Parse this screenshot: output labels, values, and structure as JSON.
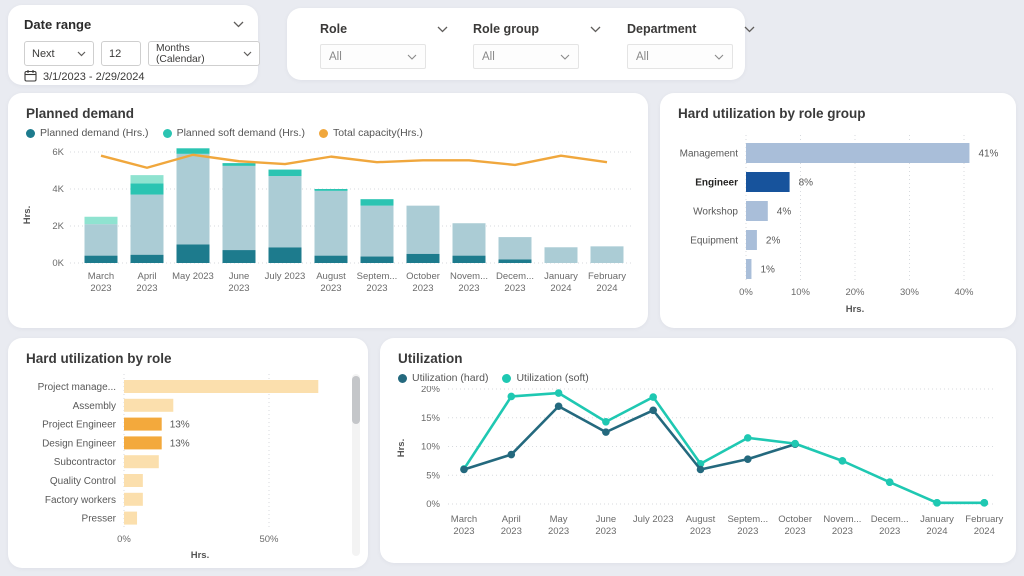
{
  "page": {
    "background": "#e9ebf1",
    "card_background": "#ffffff"
  },
  "icons": {
    "chevron_down": "chevron-down",
    "calendar": "calendar-outline"
  },
  "date_range": {
    "title": "Date range",
    "mode": "Next",
    "count": "12",
    "unit": "Months (Calendar)",
    "range_text": "3/1/2023 - 2/29/2024"
  },
  "filters": [
    {
      "label": "Role",
      "value": "All"
    },
    {
      "label": "Role group",
      "value": "All"
    },
    {
      "label": "Department",
      "value": "All"
    }
  ],
  "planned_demand": {
    "title": "Planned demand",
    "legend": [
      {
        "label": "Planned demand (Hrs.)",
        "color": "#1d7b8d"
      },
      {
        "label": "Planned soft demand (Hrs.)",
        "color": "#2bc4b2"
      },
      {
        "label": "Total capacity(Hrs.)",
        "color": "#f0a73d"
      }
    ],
    "chart_data": {
      "type": "bar",
      "stacked": true,
      "ylabel": "Hrs.",
      "ylim": [
        0,
        6400
      ],
      "grid": true,
      "yticks": [
        {
          "value": 0,
          "label": "0K"
        },
        {
          "value": 2000,
          "label": "2K"
        },
        {
          "value": 4000,
          "label": "4K"
        },
        {
          "value": 6000,
          "label": "6K"
        }
      ],
      "categories": [
        [
          "March",
          "2023"
        ],
        [
          "April",
          "2023"
        ],
        [
          "May 2023"
        ],
        [
          "June",
          "2023"
        ],
        [
          "July 2023"
        ],
        [
          "August",
          "2023"
        ],
        [
          "Septem...",
          "2023"
        ],
        [
          "October",
          "2023"
        ],
        [
          "Novem...",
          "2023"
        ],
        [
          "Decem...",
          "2023"
        ],
        [
          "January",
          "2024"
        ],
        [
          "February",
          "2024"
        ]
      ],
      "series": [
        {
          "name": "Planned demand (Hrs.)",
          "color": "#1d7b8d",
          "values": [
            400,
            450,
            1000,
            700,
            850,
            400,
            350,
            500,
            400,
            200,
            0,
            0
          ]
        },
        {
          "name": "Planned soft demand (Hrs.) muted",
          "color": "#abccd5",
          "values": [
            1700,
            3250,
            4900,
            4550,
            3850,
            3500,
            2750,
            2600,
            1750,
            1200,
            850,
            900
          ]
        },
        {
          "name": "Planned soft demand (Hrs.) bright",
          "color": "#2bc4b2",
          "values": [
            0,
            600,
            300,
            150,
            350,
            100,
            350,
            0,
            0,
            0,
            0,
            0
          ]
        },
        {
          "name": "Planned soft demand (Hrs.) light",
          "color": "#8fe3d0",
          "values": [
            400,
            450,
            0,
            0,
            0,
            0,
            0,
            0,
            0,
            0,
            0,
            0
          ]
        }
      ],
      "line": {
        "name": "Total capacity(Hrs.)",
        "color": "#f0a73d",
        "values": [
          5800,
          5150,
          5850,
          5500,
          5350,
          5750,
          5450,
          5550,
          5550,
          5300,
          5800,
          5450
        ]
      }
    }
  },
  "role_group": {
    "title": "Hard utilization by role group",
    "chart_data": {
      "type": "bar",
      "orientation": "horizontal",
      "xlabel": "Hrs.",
      "xlim": [
        0,
        44
      ],
      "grid": true,
      "xticks": [
        {
          "value": 0,
          "label": "0%"
        },
        {
          "value": 10,
          "label": "10%"
        },
        {
          "value": 20,
          "label": "20%"
        },
        {
          "value": 30,
          "label": "30%"
        },
        {
          "value": 40,
          "label": "40%"
        }
      ],
      "categories": [
        "Management",
        "Engineer",
        "Workshop",
        "Equipment",
        ""
      ],
      "values": [
        41,
        8,
        4,
        2,
        1
      ],
      "data_labels": [
        "41%",
        "8%",
        "4%",
        "2%",
        "1%"
      ],
      "bar_color": "#a9bed9",
      "highlight_color": "#17539c",
      "highlighted_index": 1
    }
  },
  "role": {
    "title": "Hard utilization by role",
    "chart_data": {
      "type": "bar",
      "orientation": "horizontal",
      "xlabel": "Hrs.",
      "xlim": [
        0,
        78
      ],
      "grid": true,
      "xticks": [
        {
          "value": 0,
          "label": "0%"
        },
        {
          "value": 50,
          "label": "50%"
        }
      ],
      "categories": [
        "Project manage...",
        "Assembly",
        "Project Engineer",
        "Design Engineer",
        "Subcontractor",
        "Quality Control",
        "Factory workers",
        "Presser"
      ],
      "values": [
        67,
        17,
        13,
        13,
        12,
        6.5,
        6.5,
        4.5
      ],
      "data_labels": [
        "",
        "",
        "13%",
        "13%",
        "",
        "",
        "",
        ""
      ],
      "bar_color": "#fbdfad",
      "highlight_color": "#f3a93c",
      "highlighted_indices": [
        2,
        3
      ],
      "has_scrollbar": true
    }
  },
  "utilization": {
    "title": "Utilization",
    "legend": [
      {
        "label": "Utilization (hard)",
        "color": "#24697e"
      },
      {
        "label": "Utilization (soft)",
        "color": "#1fc8b2"
      }
    ],
    "chart_data": {
      "type": "line",
      "ylabel": "Hrs.",
      "ylim": [
        0,
        21
      ],
      "grid": true,
      "yticks": [
        {
          "value": 0,
          "label": "0%"
        },
        {
          "value": 5,
          "label": "5%"
        },
        {
          "value": 10,
          "label": "10%"
        },
        {
          "value": 15,
          "label": "15%"
        },
        {
          "value": 20,
          "label": "20%"
        }
      ],
      "categories": [
        [
          "March",
          "2023"
        ],
        [
          "April",
          "2023"
        ],
        [
          "May",
          "2023"
        ],
        [
          "June",
          "2023"
        ],
        [
          "July 2023"
        ],
        [
          "August",
          "2023"
        ],
        [
          "Septem...",
          "2023"
        ],
        [
          "October",
          "2023"
        ],
        [
          "Novem...",
          "2023"
        ],
        [
          "Decem...",
          "2023"
        ],
        [
          "January",
          "2024"
        ],
        [
          "February",
          "2024"
        ]
      ],
      "series": [
        {
          "name": "Utilization (hard)",
          "color": "#24697e",
          "values": [
            6,
            8.6,
            17,
            12.5,
            16.3,
            6,
            7.8,
            10.4,
            null,
            null,
            null,
            null
          ]
        },
        {
          "name": "Utilization (soft)",
          "color": "#1fc8b2",
          "values": [
            6.1,
            18.7,
            19.3,
            14.3,
            18.6,
            7,
            11.5,
            10.5,
            7.5,
            3.8,
            0.2,
            0.2
          ]
        }
      ]
    }
  }
}
